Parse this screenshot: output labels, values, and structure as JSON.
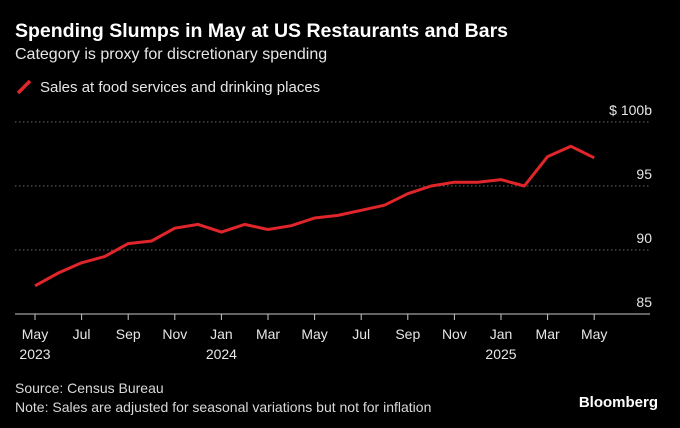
{
  "chart_data": {
    "type": "line",
    "title": "Spending Slumps in May at US Restaurants and Bars",
    "subtitle": "Category is proxy for discretionary spending",
    "unit_label": "$ 100b",
    "series": [
      {
        "name": "Sales at food services and drinking places",
        "color": "#e0252b",
        "x": [
          "2023-05",
          "2023-06",
          "2023-07",
          "2023-08",
          "2023-09",
          "2023-10",
          "2023-11",
          "2023-12",
          "2024-01",
          "2024-02",
          "2024-03",
          "2024-04",
          "2024-05",
          "2024-06",
          "2024-07",
          "2024-08",
          "2024-09",
          "2024-10",
          "2024-11",
          "2024-12",
          "2025-01",
          "2025-02",
          "2025-03",
          "2025-04",
          "2025-05"
        ],
        "values": [
          87.2,
          88.2,
          89.0,
          89.5,
          90.5,
          90.7,
          91.7,
          92.0,
          91.4,
          92.0,
          91.6,
          91.9,
          92.5,
          92.7,
          93.1,
          93.5,
          94.4,
          95.0,
          95.3,
          95.3,
          95.5,
          95.0,
          97.3,
          98.1,
          97.2
        ]
      }
    ],
    "xticks": [
      {
        "label": "May",
        "year": "2023",
        "x": "2023-05"
      },
      {
        "label": "Jul",
        "year": "",
        "x": "2023-07"
      },
      {
        "label": "Sep",
        "year": "",
        "x": "2023-09"
      },
      {
        "label": "Nov",
        "year": "",
        "x": "2023-11"
      },
      {
        "label": "Jan",
        "year": "2024",
        "x": "2024-01"
      },
      {
        "label": "Mar",
        "year": "",
        "x": "2024-03"
      },
      {
        "label": "May",
        "year": "",
        "x": "2024-05"
      },
      {
        "label": "Jul",
        "year": "",
        "x": "2024-07"
      },
      {
        "label": "Sep",
        "year": "",
        "x": "2024-09"
      },
      {
        "label": "Nov",
        "year": "",
        "x": "2024-11"
      },
      {
        "label": "Jan",
        "year": "2025",
        "x": "2025-01"
      },
      {
        "label": "Mar",
        "year": "",
        "x": "2025-03"
      },
      {
        "label": "May",
        "year": "",
        "x": "2025-05"
      }
    ],
    "yticks": [
      {
        "value": 100,
        "label": "$ 100b"
      },
      {
        "value": 95,
        "label": "95"
      },
      {
        "value": 90,
        "label": "90"
      },
      {
        "value": 85,
        "label": "85"
      }
    ],
    "ylim": [
      85,
      100
    ],
    "xlim": [
      "2023-05",
      "2025-05"
    ],
    "grid": true,
    "legend_position": "top-left"
  },
  "footer": {
    "source": "Source: Census Bureau",
    "note": "Note: Sales are adjusted for seasonal variations but not for inflation",
    "brand": "Bloomberg"
  }
}
